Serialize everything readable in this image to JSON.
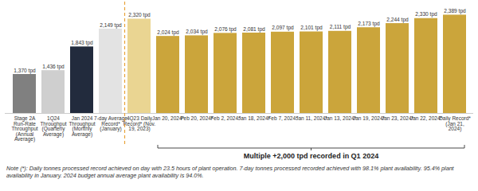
{
  "chart_data": {
    "type": "bar",
    "categories": [
      "Stage 2A Run-Rate Throughput (Annual Average)",
      "1Q24 Throughput (Quarterly Average)",
      "Jan 2024 Throughput (Monthly Average)",
      "7-day Average Record* (January)",
      "4Q23 Daily Record* (Nov. 19, 2023)",
      "Jan 20, 2024*",
      "Feb 20, 2024*",
      "Feb 2, 2024*",
      "Jan 18, 2024*",
      "Feb 7, 2024*",
      "Jan 11, 2024*",
      "Jan 13, 2024*",
      "Jan 19, 2024*",
      "Jan 23, 2024*",
      "Jan 22, 2024*",
      "Daily Record* (Jan 21, 2024)"
    ],
    "values": [
      1370,
      1436,
      1843,
      2149,
      2320,
      2024,
      2034,
      2076,
      2081,
      2097,
      2101,
      2111,
      2173,
      2244,
      2330,
      2389
    ],
    "value_labels": [
      "1,370 tpd",
      "1,436 tpd",
      "1,843 tpd",
      "2,149 tpd",
      "2,320 tpd",
      "2,024 tpd",
      "2,034 tpd",
      "2,076 tpd",
      "2,081 tpd",
      "2,097 tpd",
      "2,101 tpd",
      "2,111 tpd",
      "2,173 tpd",
      "2,244 tpd",
      "2,330 tpd",
      "2,389 tpd"
    ],
    "colors": [
      "#808080",
      "#cfcfcf",
      "#222b3d",
      "#e3e3e3",
      "#ead592",
      "#cba53b",
      "#cba53b",
      "#cba53b",
      "#cba53b",
      "#cba53b",
      "#cba53b",
      "#cba53b",
      "#cba53b",
      "#cba53b",
      "#cba53b",
      "#cba53b"
    ],
    "ylim": [
      700,
      2450
    ],
    "data_labels": true,
    "tick_labels": "x",
    "annotation": "Multiple +2,000 tpd recorded in Q1 2024",
    "note": "Note (*): Daily tonnes processed record achieved on day with 23.5 hours of plant operation. 7-day tonnes processed recorded achieved with 98.1% plant availability. 95.4% plant availability in January. 2024 budget annual average plant availability is 94.0%."
  }
}
